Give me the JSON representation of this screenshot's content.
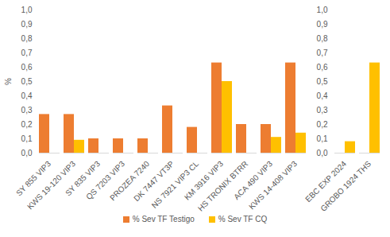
{
  "chart_data": {
    "type": "bar",
    "y_label": "%",
    "categories": [
      "SY 855 VIP3",
      "KWS 19-120 VIP3",
      "SY 835 VIP3",
      "QS 7203 VIP3",
      "PROZEA 7240",
      "DK 7447 VT3P",
      "NS 7921 VIP3 CL",
      "KM 3916 VIP3",
      "HS TRONIX BTRR",
      "ACA 490 VIP3",
      "KWS 14-408 VIP3",
      null,
      "EBC EXP 2024",
      "GROBO 1924 THS"
    ],
    "series": [
      {
        "name": "% Sev TF Testigo",
        "color": "#ed7d31",
        "values": [
          0.27,
          0.27,
          0.1,
          0.1,
          0.1,
          0.33,
          0.18,
          0.63,
          0.2,
          0.2,
          0.63,
          null,
          null,
          null
        ]
      },
      {
        "name": "% Sev TF CQ",
        "color": "#ffc000",
        "values": [
          null,
          0.09,
          null,
          null,
          null,
          null,
          null,
          0.5,
          null,
          0.11,
          0.14,
          null,
          0.08,
          0.63
        ]
      }
    ],
    "ylim": [
      0,
      1
    ],
    "yticks": [
      {
        "value": 0,
        "label": "0,0"
      },
      {
        "value": 0.1,
        "label": "0,1"
      },
      {
        "value": 0.2,
        "label": "0,2"
      },
      {
        "value": 0.3,
        "label": "0,3"
      },
      {
        "value": 0.4,
        "label": "0,4"
      },
      {
        "value": 0.5,
        "label": "0,5"
      },
      {
        "value": 0.6,
        "label": "0,6"
      },
      {
        "value": 0.7,
        "label": "0,7"
      },
      {
        "value": 0.8,
        "label": "0,8"
      },
      {
        "value": 0.9,
        "label": "0,9"
      },
      {
        "value": 1,
        "label": "1,0"
      }
    ],
    "grid": false,
    "legend": "bottom"
  }
}
